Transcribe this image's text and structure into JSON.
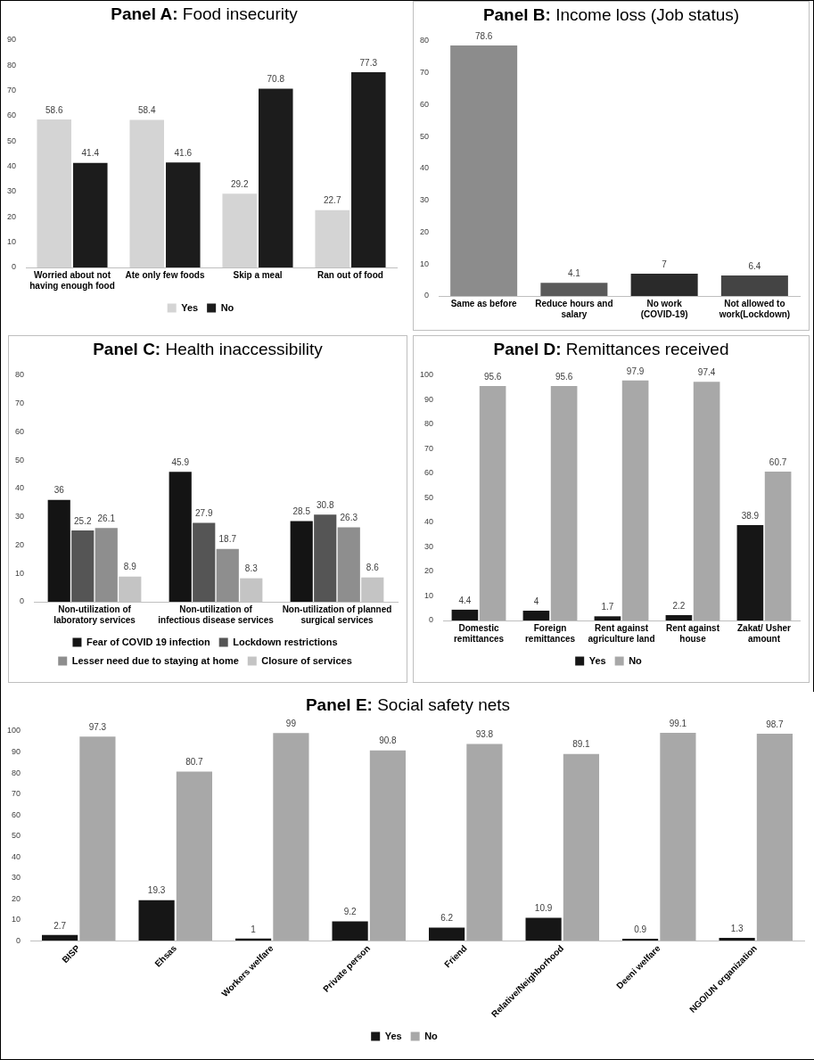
{
  "chart_data": [
    {
      "type": "bar",
      "title": "Panel A: Food insecurity",
      "categories": [
        "Worried about not having enough food",
        "Ate only few foods",
        "Skip a meal",
        "Ran out of food"
      ],
      "series": [
        {
          "name": "Yes",
          "color": "#d4d4d4",
          "values": [
            58.6,
            58.4,
            29.2,
            22.7
          ]
        },
        {
          "name": "No",
          "color": "#1c1c1c",
          "values": [
            41.4,
            41.6,
            70.8,
            77.3
          ]
        }
      ],
      "ylim": [
        0,
        90
      ],
      "yticks": [
        0,
        10,
        20,
        30,
        40,
        50,
        60,
        70,
        80,
        90
      ],
      "data_labels": true,
      "legend": "bottom",
      "grid": false
    },
    {
      "type": "bar",
      "title": "Panel B: Income loss (Job status)",
      "categories": [
        "Same as before",
        "Reduce hours and salary",
        "No work (COVID-19)",
        "Not allowed to work(Lockdown)"
      ],
      "values": [
        78.6,
        4.1,
        7,
        6.4
      ],
      "colors": [
        "#8c8c8c",
        "#5a5a5a",
        "#2a2a2a",
        "#444444"
      ],
      "ylim": [
        0,
        80
      ],
      "yticks": [
        0,
        10,
        20,
        30,
        40,
        50,
        60,
        70,
        80
      ],
      "data_labels": true,
      "legend": false,
      "grid": false
    },
    {
      "type": "bar",
      "title": "Panel C: Health inaccessibility",
      "categories": [
        "Non-utilization of laboratory services",
        "Non-utilization of infectious disease services",
        "Non-utilization of planned surgical services"
      ],
      "series": [
        {
          "name": "Fear of COVID 19 infection",
          "color": "#141414",
          "values": [
            36,
            45.9,
            28.5
          ]
        },
        {
          "name": "Lockdown restrictions",
          "color": "#555555",
          "values": [
            25.2,
            27.9,
            30.8
          ]
        },
        {
          "name": "Lesser need due to staying at home",
          "color": "#8e8e8e",
          "values": [
            26.1,
            18.7,
            26.3
          ]
        },
        {
          "name": "Closure of services",
          "color": "#c4c4c4",
          "values": [
            8.9,
            8.3,
            8.6
          ]
        }
      ],
      "ylim": [
        0,
        80
      ],
      "yticks": [
        0,
        10,
        20,
        30,
        40,
        50,
        60,
        70,
        80
      ],
      "data_labels": true,
      "legend": "bottom",
      "grid": false
    },
    {
      "type": "bar",
      "title": "Panel D:  Remittances received",
      "categories": [
        "Domestic remittances",
        "Foreign remittances",
        "Rent against agriculture land",
        "Rent against house",
        "Zakat/ Usher amount"
      ],
      "series": [
        {
          "name": "Yes",
          "color": "#161616",
          "values": [
            4.4,
            4,
            1.7,
            2.2,
            38.9
          ]
        },
        {
          "name": "No",
          "color": "#a8a8a8",
          "values": [
            95.6,
            95.6,
            97.9,
            97.4,
            60.7
          ]
        }
      ],
      "ylim": [
        0,
        100
      ],
      "yticks": [
        0,
        10,
        20,
        30,
        40,
        50,
        60,
        70,
        80,
        90,
        100
      ],
      "data_labels": true,
      "legend": "bottom",
      "grid": false
    },
    {
      "type": "bar",
      "title": "Panel E:  Social safety nets",
      "categories": [
        "BISP",
        "Ehsas",
        "Workers welfare",
        "Private person",
        "Friend",
        "Relative/Neighborhood",
        "Deeni welfare",
        "NGO/UN organization"
      ],
      "series": [
        {
          "name": "Yes",
          "color": "#161616",
          "values": [
            2.7,
            19.3,
            1,
            9.2,
            6.2,
            10.9,
            0.9,
            1.3
          ]
        },
        {
          "name": "No",
          "color": "#a8a8a8",
          "values": [
            97.3,
            80.7,
            99,
            90.8,
            93.8,
            89.1,
            99.1,
            98.7
          ]
        }
      ],
      "ylim": [
        0,
        100
      ],
      "yticks": [
        0,
        10,
        20,
        30,
        40,
        50,
        60,
        70,
        80,
        90,
        100
      ],
      "data_labels": true,
      "legend": "bottom",
      "grid": false
    }
  ]
}
